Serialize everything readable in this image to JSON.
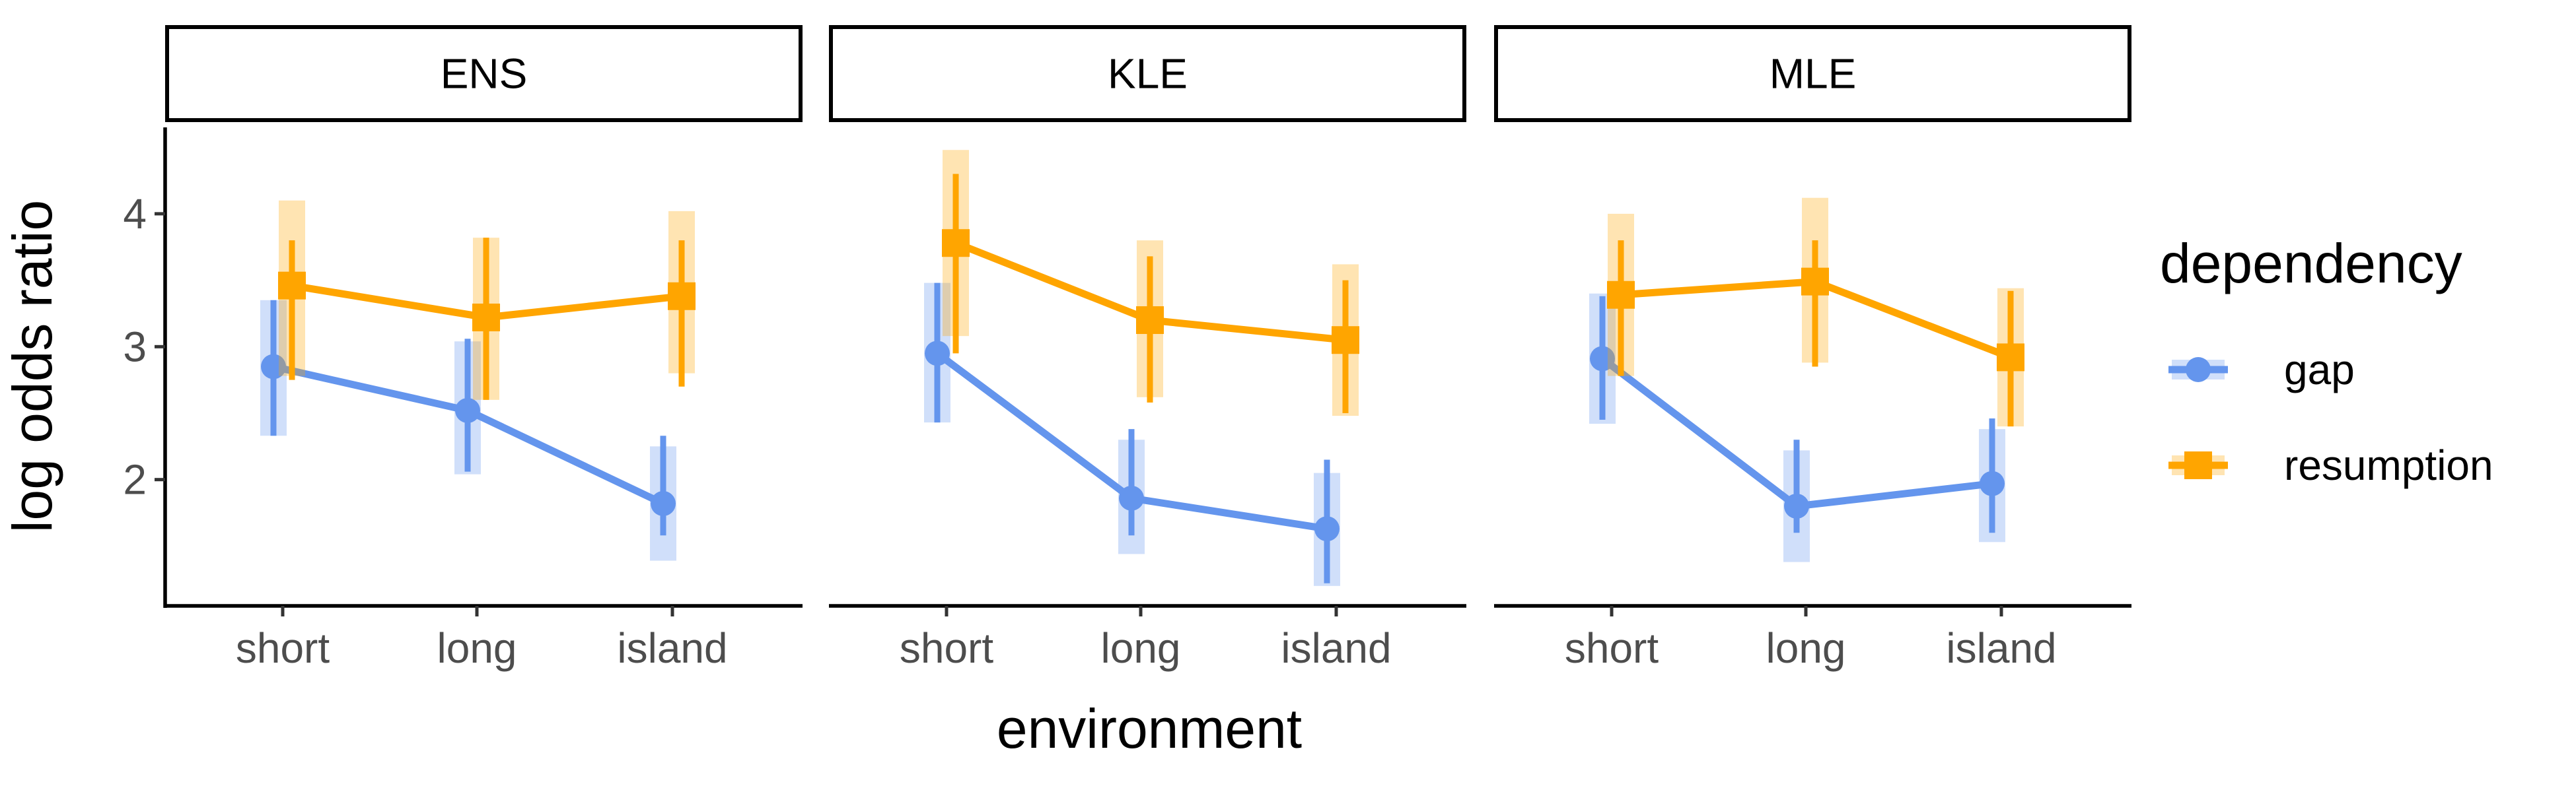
{
  "chart_data": {
    "type": "line",
    "xlabel": "environment",
    "ylabel": "log odds ratio",
    "categories": [
      "short",
      "long",
      "island"
    ],
    "yticks": [
      2,
      3,
      4
    ],
    "ylim": [
      1.05,
      4.65
    ],
    "legend": {
      "title": "dependency",
      "placement": "right",
      "entries": [
        {
          "name": "gap",
          "color": "#6495ED",
          "shape": "circle"
        },
        {
          "name": "resumption",
          "color": "#FFA500",
          "shape": "square"
        }
      ]
    },
    "panels": [
      {
        "name": "ENS",
        "series": [
          {
            "name": "gap",
            "color": "#6495ED",
            "values": [
              2.85,
              2.52,
              1.82
            ],
            "ci_line": [
              [
                2.33,
                3.35
              ],
              [
                2.06,
                3.06
              ],
              [
                1.58,
                2.33
              ]
            ],
            "ci_band": [
              [
                2.33,
                3.35
              ],
              [
                2.04,
                3.04
              ],
              [
                1.39,
                2.25
              ]
            ]
          },
          {
            "name": "resumption",
            "color": "#FFA500",
            "values": [
              3.46,
              3.22,
              3.38
            ],
            "ci_line": [
              [
                2.75,
                3.8
              ],
              [
                2.6,
                3.82
              ],
              [
                2.7,
                3.8
              ]
            ],
            "ci_band": [
              [
                2.78,
                4.1
              ],
              [
                2.6,
                3.82
              ],
              [
                2.8,
                4.02
              ]
            ]
          }
        ]
      },
      {
        "name": "KLE",
        "series": [
          {
            "name": "gap",
            "color": "#6495ED",
            "values": [
              2.95,
              1.86,
              1.63
            ],
            "ci_line": [
              [
                2.43,
                3.48
              ],
              [
                1.58,
                2.38
              ],
              [
                1.22,
                2.15
              ]
            ],
            "ci_band": [
              [
                2.43,
                3.48
              ],
              [
                1.44,
                2.3
              ],
              [
                1.2,
                2.05
              ]
            ]
          },
          {
            "name": "resumption",
            "color": "#FFA500",
            "values": [
              3.78,
              3.2,
              3.05
            ],
            "ci_line": [
              [
                2.95,
                4.3
              ],
              [
                2.58,
                3.68
              ],
              [
                2.5,
                3.5
              ]
            ],
            "ci_band": [
              [
                3.08,
                4.48
              ],
              [
                2.62,
                3.8
              ],
              [
                2.48,
                3.62
              ]
            ]
          }
        ]
      },
      {
        "name": "MLE",
        "series": [
          {
            "name": "gap",
            "color": "#6495ED",
            "values": [
              2.91,
              1.8,
              1.97
            ],
            "ci_line": [
              [
                2.45,
                3.38
              ],
              [
                1.6,
                2.3
              ],
              [
                1.6,
                2.46
              ]
            ],
            "ci_band": [
              [
                2.42,
                3.4
              ],
              [
                1.38,
                2.22
              ],
              [
                1.53,
                2.38
              ]
            ]
          },
          {
            "name": "resumption",
            "color": "#FFA500",
            "values": [
              3.39,
              3.49,
              2.92
            ],
            "ci_line": [
              [
                2.78,
                3.8
              ],
              [
                2.85,
                3.8
              ],
              [
                2.4,
                3.42
              ]
            ],
            "ci_band": [
              [
                2.78,
                4.0
              ],
              [
                2.88,
                4.12
              ],
              [
                2.4,
                3.44
              ]
            ]
          }
        ]
      }
    ]
  }
}
